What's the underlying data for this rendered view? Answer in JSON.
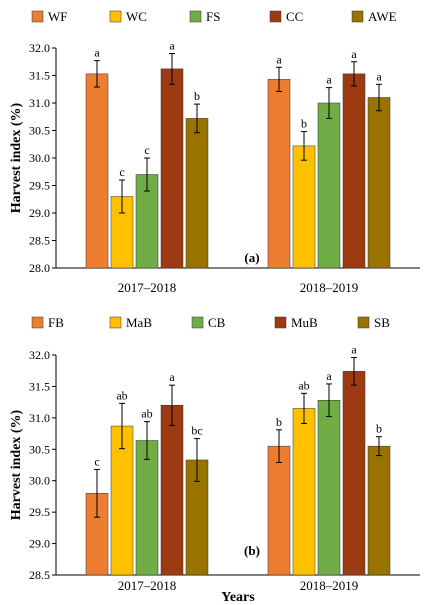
{
  "chart_data": [
    {
      "type": "bar",
      "panel_label": "(a)",
      "ylabel": "Harvest index (%)",
      "xlabel": "",
      "ylim": [
        28.0,
        32.0
      ],
      "yticks": [
        "28.0",
        "28.5",
        "29.0",
        "29.5",
        "30.0",
        "30.5",
        "31.0",
        "31.5",
        "32.0"
      ],
      "categories": [
        "2017–2018",
        "2018–2019"
      ],
      "legend_position": "top",
      "series": [
        {
          "name": "WF",
          "color": "#ED7D31",
          "values": [
            31.53,
            31.43
          ],
          "errors": [
            0.24,
            0.22
          ],
          "letters": [
            "a",
            "a"
          ]
        },
        {
          "name": "WC",
          "color": "#FFC000",
          "values": [
            29.3,
            30.22
          ],
          "errors": [
            0.3,
            0.26
          ],
          "letters": [
            "c",
            "b"
          ]
        },
        {
          "name": "FS",
          "color": "#70AD47",
          "values": [
            29.7,
            31.0
          ],
          "errors": [
            0.3,
            0.28
          ],
          "letters": [
            "c",
            "a"
          ]
        },
        {
          "name": "CC",
          "color": "#9E3A12",
          "values": [
            31.62,
            31.53
          ],
          "errors": [
            0.28,
            0.22
          ],
          "letters": [
            "a",
            "a"
          ]
        },
        {
          "name": "AWE",
          "color": "#997300",
          "values": [
            30.72,
            31.1
          ],
          "errors": [
            0.26,
            0.24
          ],
          "letters": [
            "b",
            "a"
          ]
        }
      ]
    },
    {
      "type": "bar",
      "panel_label": "(b)",
      "ylabel": "Harvest index (%)",
      "xlabel": "Years",
      "ylim": [
        28.5,
        32.0
      ],
      "yticks": [
        "28.5",
        "29.0",
        "29.5",
        "30.0",
        "30.5",
        "31.0",
        "31.5",
        "32.0"
      ],
      "categories": [
        "2017–2018",
        "2018–2019"
      ],
      "legend_position": "top",
      "series": [
        {
          "name": "FB",
          "color": "#ED7D31",
          "values": [
            29.8,
            30.55
          ],
          "errors": [
            0.38,
            0.26
          ],
          "letters": [
            "c",
            "b"
          ]
        },
        {
          "name": "MaB",
          "color": "#FFC000",
          "values": [
            30.87,
            31.15
          ],
          "errors": [
            0.36,
            0.24
          ],
          "letters": [
            "ab",
            "ab"
          ]
        },
        {
          "name": "CB",
          "color": "#70AD47",
          "values": [
            30.64,
            31.28
          ],
          "errors": [
            0.3,
            0.26
          ],
          "letters": [
            "ab",
            "a"
          ]
        },
        {
          "name": "MuB",
          "color": "#9E3A12",
          "values": [
            31.2,
            31.74
          ],
          "errors": [
            0.32,
            0.22
          ],
          "letters": [
            "a",
            "a"
          ]
        },
        {
          "name": "SB",
          "color": "#997300",
          "values": [
            30.33,
            30.55
          ],
          "errors": [
            0.34,
            0.15
          ],
          "letters": [
            "bc",
            "b"
          ]
        }
      ]
    }
  ]
}
